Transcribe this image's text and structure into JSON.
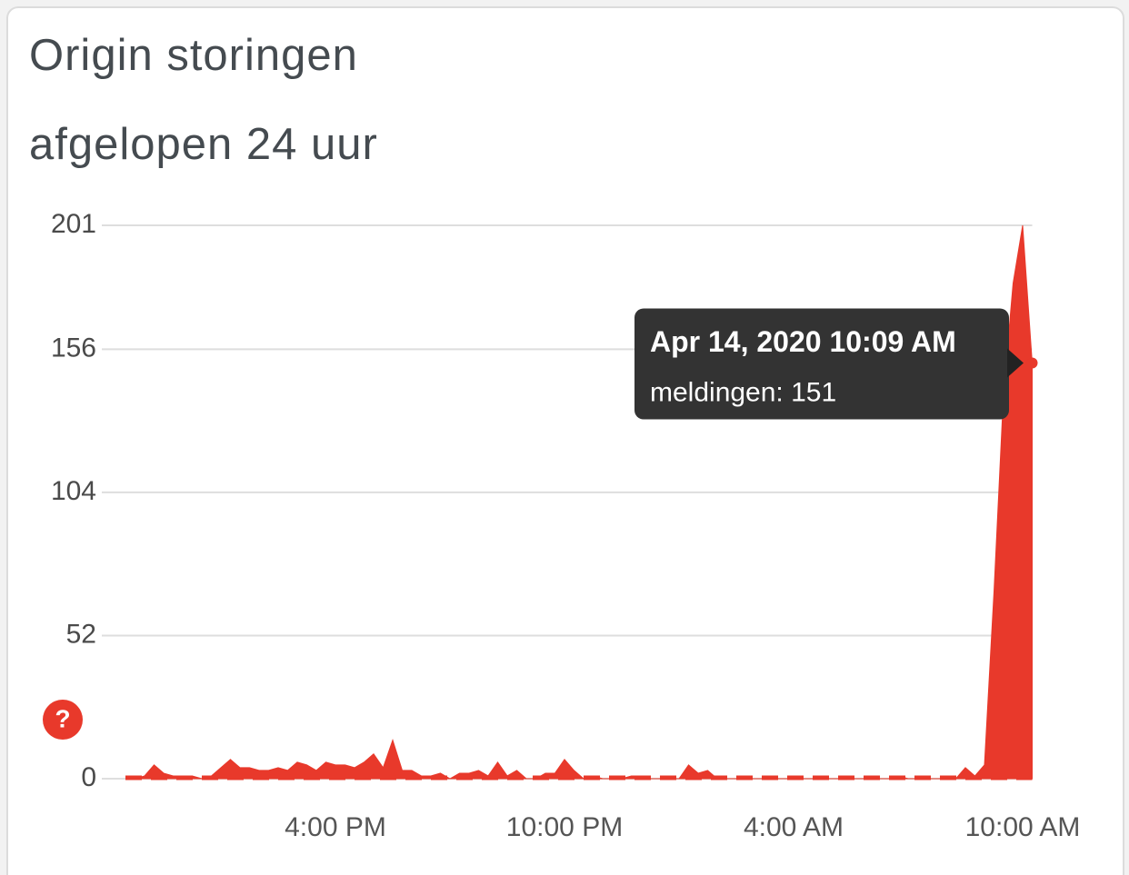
{
  "help_icon": "?",
  "chart_data": {
    "type": "area",
    "title": "Origin storingen",
    "subtitle": "afgelopen 24 uur",
    "categories": [
      null,
      null,
      null,
      null,
      null,
      null,
      null,
      null,
      null,
      null,
      null,
      null,
      null,
      null,
      null,
      null,
      null,
      null,
      null,
      null,
      null,
      null,
      "4:00 PM",
      null,
      null,
      null,
      null,
      null,
      null,
      null,
      null,
      null,
      null,
      null,
      null,
      null,
      null,
      null,
      null,
      null,
      null,
      null,
      null,
      null,
      null,
      null,
      "10:00 PM",
      null,
      null,
      null,
      null,
      null,
      null,
      null,
      null,
      null,
      null,
      null,
      null,
      null,
      null,
      null,
      null,
      null,
      null,
      null,
      null,
      null,
      null,
      null,
      "4:00 AM",
      null,
      null,
      null,
      null,
      null,
      null,
      null,
      null,
      null,
      null,
      null,
      null,
      null,
      null,
      null,
      null,
      null,
      null,
      null,
      null,
      null,
      null,
      null,
      "10:00 AM",
      null
    ],
    "series": [
      {
        "name": "meldingen",
        "color": "#e8392b",
        "values": [
          0,
          0,
          1,
          5,
          2,
          1,
          1,
          1,
          0,
          1,
          4,
          7,
          4,
          4,
          3,
          3,
          4,
          3,
          6,
          5,
          3,
          6,
          5,
          5,
          4,
          6,
          9,
          4,
          14,
          3,
          3,
          1,
          1,
          2,
          0,
          2,
          2,
          3,
          1,
          6,
          1,
          3,
          0,
          0,
          2,
          2,
          7,
          3,
          0,
          1,
          0,
          0,
          0,
          1,
          1,
          0,
          0,
          0,
          0,
          5,
          2,
          3,
          0,
          0,
          0,
          0,
          0,
          0,
          0,
          0,
          0,
          0,
          0,
          0,
          0,
          0,
          0,
          0,
          0,
          0,
          0,
          1,
          0,
          0,
          0,
          0,
          0,
          0,
          4,
          1,
          5,
          68,
          140,
          180,
          201,
          151
        ]
      }
    ],
    "ylim": [
      0,
      201
    ],
    "yticks": [
      0,
      52,
      104,
      156,
      201
    ],
    "grid": true,
    "tooltip": {
      "title": "Apr 14, 2020 10:09 AM",
      "body": "meldingen: 151"
    }
  }
}
